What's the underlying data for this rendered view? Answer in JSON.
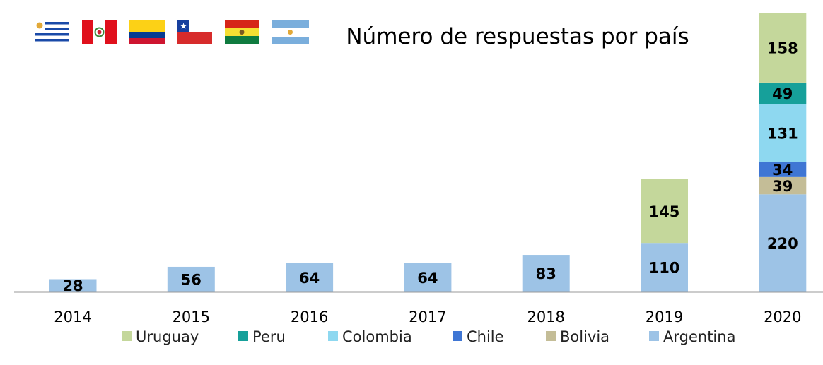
{
  "chart_data": {
    "type": "bar",
    "stacked": true,
    "title": "Número de respuestas por país",
    "xlabel": "",
    "ylabel": "",
    "ylim": [
      0,
      631
    ],
    "grid": false,
    "legend_position": "bottom",
    "categories": [
      "2014",
      "2015",
      "2016",
      "2017",
      "2018",
      "2019",
      "2020"
    ],
    "series": [
      {
        "name": "Argentina",
        "color": "#9dc3e6",
        "values": [
          28,
          56,
          64,
          64,
          83,
          110,
          220
        ]
      },
      {
        "name": "Bolivia",
        "color": "#c4bd97",
        "values": [
          0,
          0,
          0,
          0,
          0,
          0,
          39
        ]
      },
      {
        "name": "Chile",
        "color": "#3f76d4",
        "values": [
          0,
          0,
          0,
          0,
          0,
          0,
          34
        ]
      },
      {
        "name": "Colombia",
        "color": "#8ed8f0",
        "values": [
          0,
          0,
          0,
          0,
          0,
          0,
          131
        ]
      },
      {
        "name": "Peru",
        "color": "#16a09a",
        "values": [
          0,
          0,
          0,
          0,
          0,
          0,
          49
        ]
      },
      {
        "name": "Uruguay",
        "color": "#c4d79b",
        "values": [
          0,
          0,
          0,
          0,
          0,
          145,
          158
        ]
      }
    ],
    "legend_order": [
      "Uruguay",
      "Peru",
      "Colombia",
      "Chile",
      "Bolivia",
      "Argentina"
    ]
  },
  "flags": [
    "uruguay-flag-icon",
    "peru-flag-icon",
    "colombia-flag-icon",
    "chile-flag-icon",
    "bolivia-flag-icon",
    "argentina-flag-icon"
  ]
}
